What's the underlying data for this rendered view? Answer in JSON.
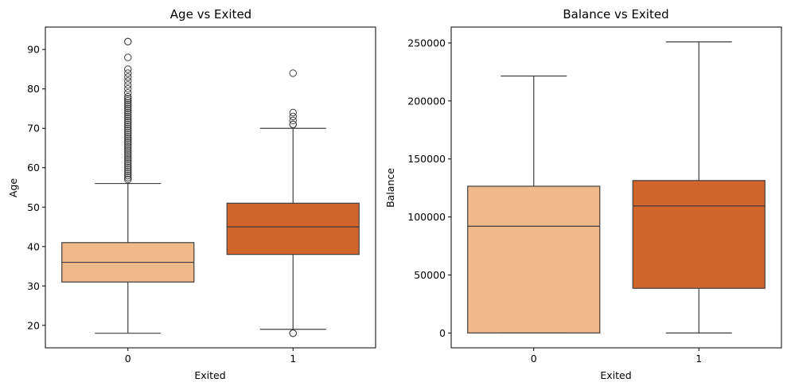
{
  "chart_data": [
    {
      "type": "boxplot",
      "title": "Age vs Exited",
      "xlabel": "Exited",
      "ylabel": "Age",
      "ylim": [
        14.3,
        95.7
      ],
      "yticks": [
        20,
        30,
        40,
        50,
        60,
        70,
        80,
        90
      ],
      "categories": [
        "0",
        "1"
      ],
      "colors": [
        "#F0BA8B",
        "#D1652B"
      ],
      "boxes": [
        {
          "category": "0",
          "whisker_low": 18,
          "q1": 31,
          "median": 36,
          "q3": 41,
          "whisker_high": 56,
          "outliers": [
            57,
            57.5,
            58,
            58.5,
            59,
            59.5,
            60,
            60.5,
            61,
            61.5,
            62,
            62.5,
            63,
            63.5,
            64,
            64.5,
            65,
            65.5,
            66,
            66.5,
            67,
            67.5,
            68,
            68.5,
            69,
            69.5,
            70,
            70.5,
            71,
            71.5,
            72,
            72.5,
            73,
            73.5,
            74,
            74.5,
            75,
            75.5,
            76,
            76.5,
            77,
            77.5,
            78,
            79,
            80,
            81,
            82,
            83,
            84,
            85,
            88,
            92,
            92
          ]
        },
        {
          "category": "1",
          "whisker_low": 19,
          "q1": 38,
          "median": 45,
          "q3": 51,
          "whisker_high": 70,
          "outliers": [
            18,
            18,
            71,
            71,
            72,
            73,
            74,
            84
          ]
        }
      ]
    },
    {
      "type": "boxplot",
      "title": "Balance vs Exited",
      "xlabel": "Exited",
      "ylabel": "Balance",
      "ylim": [
        -12800,
        263700
      ],
      "yticks": [
        0,
        50000,
        100000,
        150000,
        200000,
        250000
      ],
      "categories": [
        "0",
        "1"
      ],
      "colors": [
        "#F0BA8B",
        "#D1652B"
      ],
      "boxes": [
        {
          "category": "0",
          "whisker_low": 0,
          "q1": 0,
          "median": 92000,
          "q3": 126500,
          "whisker_high": 221500,
          "outliers": []
        },
        {
          "category": "1",
          "whisker_low": 0,
          "q1": 38500,
          "median": 109500,
          "q3": 131400,
          "whisker_high": 250900,
          "outliers": []
        }
      ]
    }
  ]
}
